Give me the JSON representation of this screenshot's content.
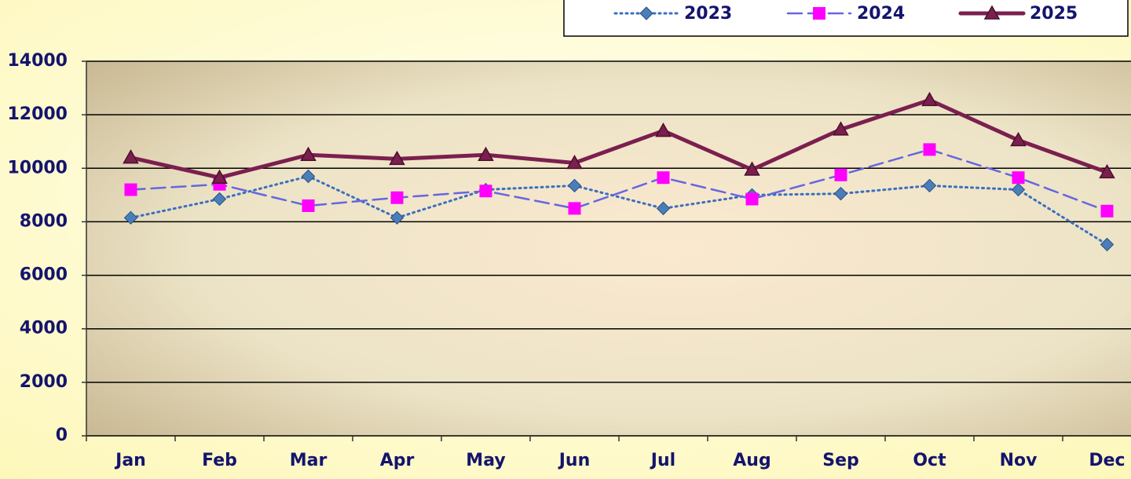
{
  "chart_data": {
    "type": "line",
    "categories": [
      "Jan",
      "Feb",
      "Mar",
      "Apr",
      "May",
      "Jun",
      "Jul",
      "Aug",
      "Sep",
      "Oct",
      "Nov",
      "Dec"
    ],
    "series": [
      {
        "name": "2023",
        "color": "#3a6fc0",
        "marker_color": "#4a7ebb",
        "line_style": "dotted",
        "marker": "diamond",
        "values": [
          8150,
          8850,
          9700,
          8150,
          9200,
          9350,
          8500,
          9000,
          9050,
          9350,
          9200,
          7150
        ]
      },
      {
        "name": "2024",
        "color": "#6666e0",
        "marker_color": "#ff00ff",
        "line_style": "dashed",
        "marker": "square",
        "values": [
          9200,
          9400,
          8600,
          8900,
          9150,
          8500,
          9650,
          8850,
          9750,
          10700,
          9650,
          8400
        ]
      },
      {
        "name": "2025",
        "color": "#7b1f4f",
        "marker_color": "#7b1f4f",
        "line_style": "solid",
        "marker": "triangle",
        "values": [
          10400,
          9650,
          10500,
          10350,
          10500,
          10200,
          11400,
          9950,
          11450,
          12550,
          11050,
          9850
        ]
      }
    ],
    "ylim": [
      0,
      14000
    ],
    "yticks": [
      0,
      2000,
      4000,
      6000,
      8000,
      10000,
      12000,
      14000
    ],
    "grid": true,
    "legend": "top-right"
  }
}
